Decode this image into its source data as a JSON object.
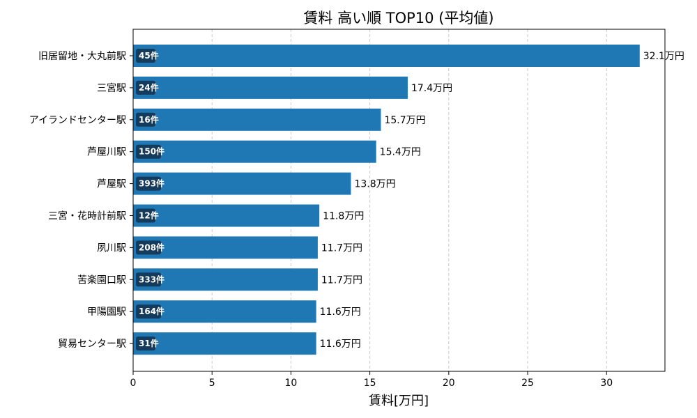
{
  "chart_data": {
    "type": "bar",
    "orientation": "horizontal",
    "title": "賃料 高い順 TOP10 (平均値)",
    "xlabel": "賃料[万円]",
    "ylabel": "",
    "xlim": [
      0,
      33.7
    ],
    "xticks": [
      0,
      5,
      10,
      15,
      20,
      25,
      30
    ],
    "grid": "x-dashed",
    "bar_color": "#1f77b4",
    "badge_color": "#143a5c",
    "categories": [
      "旧居留地・大丸前駅",
      "三宮駅",
      "アイランドセンター駅",
      "芦屋川駅",
      "芦屋駅",
      "三宮・花時計前駅",
      "夙川駅",
      "苦楽園口駅",
      "甲陽園駅",
      "貿易センター駅"
    ],
    "values": [
      32.1,
      17.4,
      15.7,
      15.4,
      13.8,
      11.8,
      11.7,
      11.7,
      11.6,
      11.6
    ],
    "value_labels": [
      "32.1万円",
      "17.4万円",
      "15.7万円",
      "15.4万円",
      "13.8万円",
      "11.8万円",
      "11.7万円",
      "11.7万円",
      "11.6万円",
      "11.6万円"
    ],
    "count_labels": [
      "45件",
      "24件",
      "16件",
      "150件",
      "393件",
      "12件",
      "208件",
      "333件",
      "164件",
      "31件"
    ]
  }
}
